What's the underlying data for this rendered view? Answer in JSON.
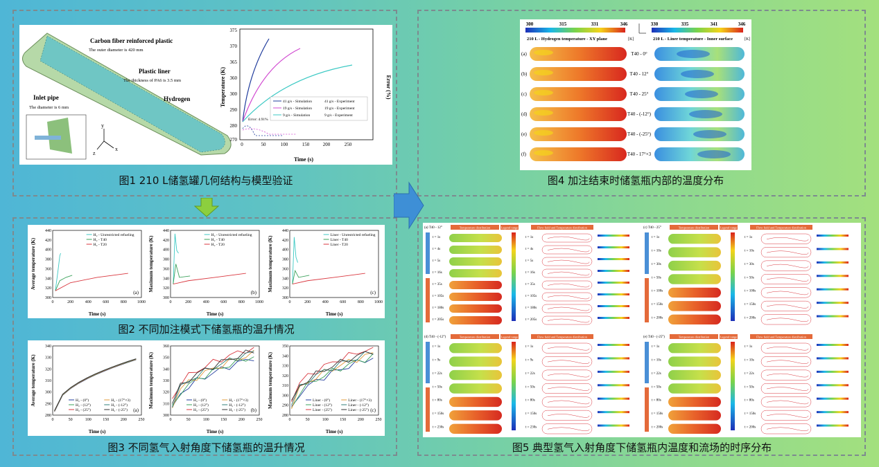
{
  "captions": {
    "fig1": "图1 210 L储氢罐几何结构与模型验证",
    "fig2": "图2 不同加注模式下储氢瓶的温升情况",
    "fig3": "图3 不同氢气入射角度下储氢瓶的温升情况",
    "fig4": "图4 加注结束时储氢瓶内部的温度分布",
    "fig5": "图5 典型氢气入射角度下储氢瓶内温度和流场的时序分布"
  },
  "fig1": {
    "labels": {
      "cfrp": "Carbon fiber reinforced plastic",
      "cfrp_sub": "The outer diameter is 420 mm",
      "liner": "Plastic liner",
      "liner_sub": "The thickness of PA6 is 3.5 mm",
      "inlet": "Inlet pipe",
      "inlet_sub": "The diameter is 6 mm",
      "h2": "Hydrogen",
      "axis_y": "y",
      "axis_x": "x",
      "axis_z": "z"
    },
    "chart": {
      "xlabel": "Time (s)",
      "ylabel": "Temperature (K)",
      "y2label": "Error (%)",
      "error_note": "Error: 4.91%"
    },
    "legend": [
      "41 g/s - Simulation",
      "19 g/s - Simulation",
      "9 g/s - Simulation",
      "41 g/s - Experiment",
      "19 g/s - Experiment",
      "9 g/s - Experiment"
    ]
  },
  "fig2": {
    "a": {
      "ylabel": "Average temperature (K)",
      "xlabel": "Time (s)",
      "tag": "(a)",
      "legend": [
        "H₂ - Unrestricted refueling",
        "H₂ - T40",
        "H₂ - T20"
      ]
    },
    "b": {
      "ylabel": "Maximum temperature (K)",
      "xlabel": "Time (s)",
      "tag": "(b)",
      "legend": [
        "H₂ - Unrestricted refueling",
        "H₂ - T40",
        "H₂ - T20"
      ]
    },
    "c": {
      "ylabel": "Maximum temperature (K)",
      "xlabel": "Time (s)",
      "tag": "(c)",
      "legend": [
        "Liner - Unrestricted refueling",
        "Liner - T40",
        "Liner - T20"
      ]
    }
  },
  "fig3": {
    "a": {
      "ylabel": "Average temperature (K)",
      "xlabel": "Time (s)",
      "tag": "(a)",
      "legend": [
        "H₂ - (0°)",
        "H₂ - (12°)",
        "H₂ - (25°)",
        "H₂ - (17°×3)",
        "H₂ - (-12°)",
        "H₂ - (-25°)"
      ]
    },
    "b": {
      "ylabel": "Maximum temperature (K)",
      "xlabel": "Time (s)",
      "tag": "(b)",
      "legend": [
        "H₂ - (0°)",
        "H₂ - (12°)",
        "H₂ - (25°)",
        "H₂ - (17°×3)",
        "H₂ - (-12°)",
        "H₂ - (-25°)"
      ]
    },
    "c": {
      "ylabel": "Maximum temperature (K)",
      "xlabel": "Time (s)",
      "tag": "(c)",
      "legend": [
        "Liner - (0°)",
        "Liner - (12°)",
        "Liner - (25°)",
        "Liner - (17°×3)",
        "Liner - (-12°)",
        "Liner - (-25°)"
      ]
    }
  },
  "fig4": {
    "left_title": "210 L - Hydrogen temperature - XY plane",
    "right_title": "210 L - Liner temperature - Inner surface",
    "left_ticks": [
      "300",
      "315",
      "331",
      "346"
    ],
    "right_ticks": [
      "330",
      "335",
      "341",
      "346"
    ],
    "unit": "[K]",
    "rows": [
      {
        "tag": "(a)",
        "label": "T40 - 0°"
      },
      {
        "tag": "(b)",
        "label": "T40 - 12°"
      },
      {
        "tag": "(c)",
        "label": "T40 - 25°"
      },
      {
        "tag": "(d)",
        "label": "T40 - (-12°)"
      },
      {
        "tag": "(e)",
        "label": "T40 - (-25°)"
      },
      {
        "tag": "(f)",
        "label": "T40 - 17°×3"
      }
    ]
  },
  "fig5": {
    "quadrants": [
      {
        "tag": "(a) T40 - 12°",
        "times": [
          "t = 1s",
          "t = 4s",
          "t = 5s",
          "t = 16s",
          "t = 35s",
          "t = 105s",
          "t = 180s",
          "t = 205s"
        ]
      },
      {
        "tag": "(c) T40 - 25°",
        "times": [
          "t = 1s",
          "t = 10s",
          "t = 30s",
          "t = 50s",
          "t = 100s",
          "t = 150s",
          "t = 200s"
        ]
      },
      {
        "tag": "(d) T40 - (-12°)",
        "times": [
          "t = 1s",
          "t = 9s",
          "t = 22s",
          "t = 50s",
          "t = 80s",
          "t = 150s",
          "t = 230s"
        ]
      },
      {
        "tag": "(e) T40 - (-25°)",
        "times": [
          "t = 1s",
          "t = 10s",
          "t = 22s",
          "t = 50s",
          "t = 80s",
          "t = 150s",
          "t = 200s"
        ]
      }
    ],
    "temp_title": "Temperature distribution",
    "flow_title": "Flow field and Temperature distribution",
    "legend_title": "Legend range"
  },
  "colors": {
    "arrow_green": "#8ccf3e",
    "arrow_blue": "#3e8fd6",
    "tank_green": "#b6d9a8",
    "line_blue": "#1f3b9c",
    "line_pink": "#d14ad1",
    "line_cyan": "#3cc9c4",
    "line_red": "#d9363e",
    "line_green": "#3aa15a"
  }
}
